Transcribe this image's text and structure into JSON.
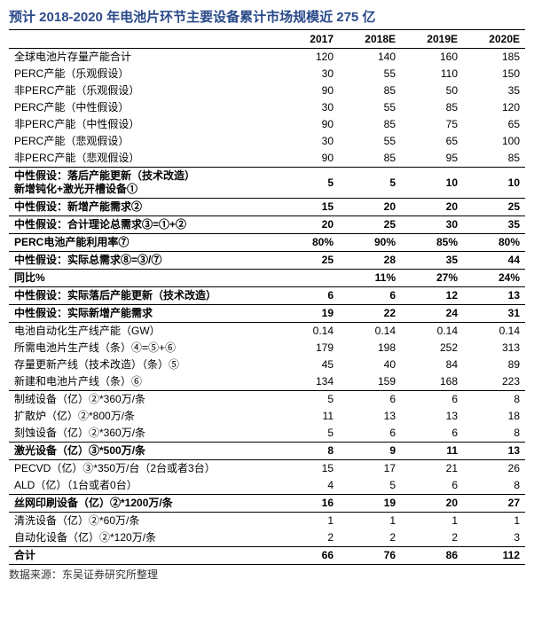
{
  "title": "预计 2018-2020 年电池片环节主要设备累计市场规模近 275 亿",
  "columns": [
    "",
    "2017",
    "2018E",
    "2019E",
    "2020E"
  ],
  "rows": [
    {
      "label": "全球电池片存量产能合计",
      "v": [
        "120",
        "140",
        "160",
        "185"
      ],
      "bold": false,
      "sep": true
    },
    {
      "label": "PERC产能（乐观假设）",
      "v": [
        "30",
        "55",
        "110",
        "150"
      ],
      "bold": false
    },
    {
      "label": "非PERC产能（乐观假设）",
      "v": [
        "90",
        "85",
        "50",
        "35"
      ],
      "bold": false
    },
    {
      "label": "PERC产能（中性假设）",
      "v": [
        "30",
        "55",
        "85",
        "120"
      ],
      "bold": false
    },
    {
      "label": "非PERC产能（中性假设）",
      "v": [
        "90",
        "85",
        "75",
        "65"
      ],
      "bold": false
    },
    {
      "label": "PERC产能（悲观假设）",
      "v": [
        "30",
        "55",
        "65",
        "100"
      ],
      "bold": false
    },
    {
      "label": "非PERC产能（悲观假设）",
      "v": [
        "90",
        "85",
        "95",
        "85"
      ],
      "bold": false
    },
    {
      "label": "中性假设：落后产能更新（技术改造）\n新增钝化+激光开槽设备①",
      "v": [
        "5",
        "5",
        "10",
        "10"
      ],
      "bold": true,
      "sep": true
    },
    {
      "label": "中性假设：新增产能需求②",
      "v": [
        "15",
        "20",
        "20",
        "25"
      ],
      "bold": true,
      "sep": true
    },
    {
      "label": "中性假设：合计理论总需求③=①+②",
      "v": [
        "20",
        "25",
        "30",
        "35"
      ],
      "bold": true,
      "sep": true
    },
    {
      "label": "PERC电池产能利用率⑦",
      "v": [
        "80%",
        "90%",
        "85%",
        "80%"
      ],
      "bold": true,
      "sep": true
    },
    {
      "label": "中性假设：实际总需求⑧=③/⑦",
      "v": [
        "25",
        "28",
        "35",
        "44"
      ],
      "bold": true,
      "sep": true
    },
    {
      "label": "同比%",
      "v": [
        "",
        "11%",
        "27%",
        "24%"
      ],
      "bold": true,
      "sep": true
    },
    {
      "label": "中性假设：实际落后产能更新（技术改造）",
      "v": [
        "6",
        "6",
        "12",
        "13"
      ],
      "bold": true,
      "sep": true
    },
    {
      "label": "中性假设：实际新增产能需求",
      "v": [
        "19",
        "22",
        "24",
        "31"
      ],
      "bold": true,
      "sep": true
    },
    {
      "label": "电池自动化生产线产能（GW）",
      "v": [
        "0.14",
        "0.14",
        "0.14",
        "0.14"
      ],
      "bold": false,
      "sep": true
    },
    {
      "label": "所需电池片生产线（条）④=⑤+⑥",
      "v": [
        "179",
        "198",
        "252",
        "313"
      ],
      "bold": false
    },
    {
      "label": "存量更新产线（技术改造）（条）⑤",
      "v": [
        "45",
        "40",
        "84",
        "89"
      ],
      "bold": false
    },
    {
      "label": "新建和电池片产线（条）⑥",
      "v": [
        "134",
        "159",
        "168",
        "223"
      ],
      "bold": false
    },
    {
      "label": "制绒设备（亿）②*360万/条",
      "v": [
        "5",
        "6",
        "6",
        "8"
      ],
      "bold": false,
      "sep": true
    },
    {
      "label": "扩散炉（亿）②*800万/条",
      "v": [
        "11",
        "13",
        "13",
        "18"
      ],
      "bold": false
    },
    {
      "label": "刻蚀设备（亿）②*360万/条",
      "v": [
        "5",
        "6",
        "6",
        "8"
      ],
      "bold": false
    },
    {
      "label": "激光设备（亿）③*500万/条",
      "v": [
        "8",
        "9",
        "11",
        "13"
      ],
      "bold": true,
      "sep": true
    },
    {
      "label": "PECVD（亿）③*350万/台（2台或者3台）",
      "v": [
        "15",
        "17",
        "21",
        "26"
      ],
      "bold": false,
      "sep": true
    },
    {
      "label": "ALD（亿）（1台或者0台）",
      "v": [
        "4",
        "5",
        "6",
        "8"
      ],
      "bold": false
    },
    {
      "label": "丝网印刷设备（亿）②*1200万/条",
      "v": [
        "16",
        "19",
        "20",
        "27"
      ],
      "bold": true,
      "sep": true
    },
    {
      "label": "清洗设备（亿）②*60万/条",
      "v": [
        "1",
        "1",
        "1",
        "1"
      ],
      "bold": false,
      "sep": true
    },
    {
      "label": "自动化设备（亿）②*120万/条",
      "v": [
        "2",
        "2",
        "2",
        "3"
      ],
      "bold": false
    }
  ],
  "total": {
    "label": "合计",
    "v": [
      "66",
      "76",
      "86",
      "112"
    ]
  },
  "source_label": "数据来源：东吴证券研究所整理"
}
